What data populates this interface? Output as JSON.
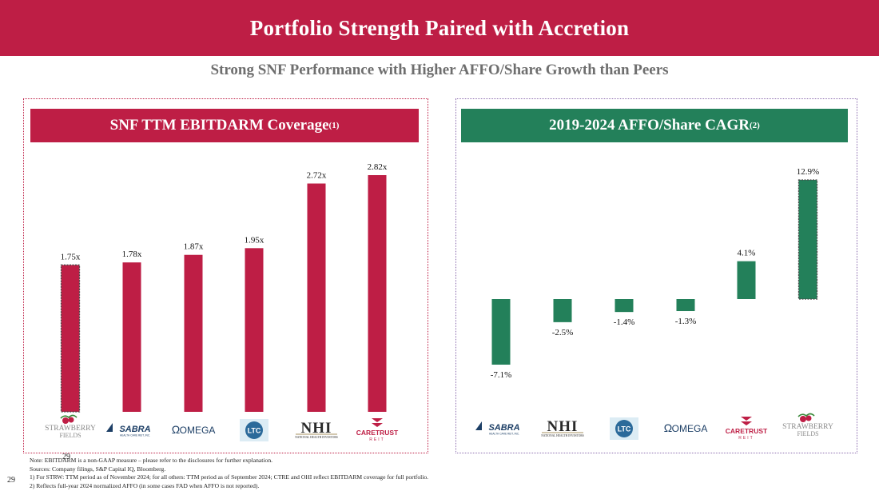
{
  "header": {
    "title": "Portfolio Strength Paired with Accretion",
    "subtitle": "Strong SNF Performance with Higher AFFO/Share Growth than Peers"
  },
  "colors": {
    "brand_red": "#be1e45",
    "brand_green": "#23805a",
    "panel_border_right": "#8e6fb0"
  },
  "left_panel": {
    "title": "SNF TTM EBITDARM Coverage",
    "note_ref": "(1)"
  },
  "right_panel": {
    "title": "2019-2024 AFFO/Share CAGR",
    "note_ref": "(2)"
  },
  "chart_data": [
    {
      "type": "bar",
      "title": "SNF TTM EBITDARM Coverage",
      "categories": [
        "STRAWBERRY FIELDS",
        "SABRA",
        "OMEGA",
        "LTC",
        "NHI",
        "CARETRUST REIT"
      ],
      "values": [
        1.75,
        1.78,
        1.87,
        1.95,
        2.72,
        2.82
      ],
      "labels": [
        "1.75x",
        "1.78x",
        "1.87x",
        "1.95x",
        "2.72x",
        "2.82x"
      ],
      "highlight_index": 0,
      "color": "#be1e45",
      "ylim": [
        0,
        2.82
      ]
    },
    {
      "type": "bar",
      "title": "2019-2024 AFFO/Share CAGR",
      "categories": [
        "SABRA",
        "NHI",
        "LTC",
        "OMEGA",
        "CARETRUST REIT",
        "STRAWBERRY FIELDS"
      ],
      "values": [
        -7.1,
        -2.5,
        -1.4,
        -1.3,
        4.1,
        12.9
      ],
      "labels": [
        "-7.1%",
        "-2.5%",
        "-1.4%",
        "-1.3%",
        "4.1%",
        "12.9%"
      ],
      "highlight_index": 5,
      "color": "#23805a",
      "ylim": [
        -7.1,
        12.9
      ]
    }
  ],
  "logos": {
    "strawberry": {
      "line1": "STRAWBERRY",
      "line2": "FIELDS"
    },
    "sabra": {
      "name": "SABRA",
      "tag": "HEALTH CARE REIT, INC."
    },
    "omega": {
      "name": "OMEGA",
      "glyph": "Ω"
    },
    "ltc": {
      "name": "LTC"
    },
    "nhi": {
      "name": "NHI",
      "tag": "NATIONAL HEALTH INVESTORS"
    },
    "caretrust": {
      "name": "CARETRUST",
      "tag": "REIT"
    }
  },
  "footnotes": [
    "Note: EBITDARM is a non-GAAP measure – please refer to the disclosures for further explanation.",
    "Sources: Company filings, S&P Capital IQ, Bloomberg.",
    "1) For STRW: TTM period as of November 2024; for all others: TTM period as of September 2024; CTRE and OHI reflect EBITDARM coverage for full portfolio.",
    "2) Reflects full-year 2024 normalized AFFO (in some cases FAD when AFFO is not reported)."
  ],
  "page_number": "29",
  "ghost_page_number": "29"
}
